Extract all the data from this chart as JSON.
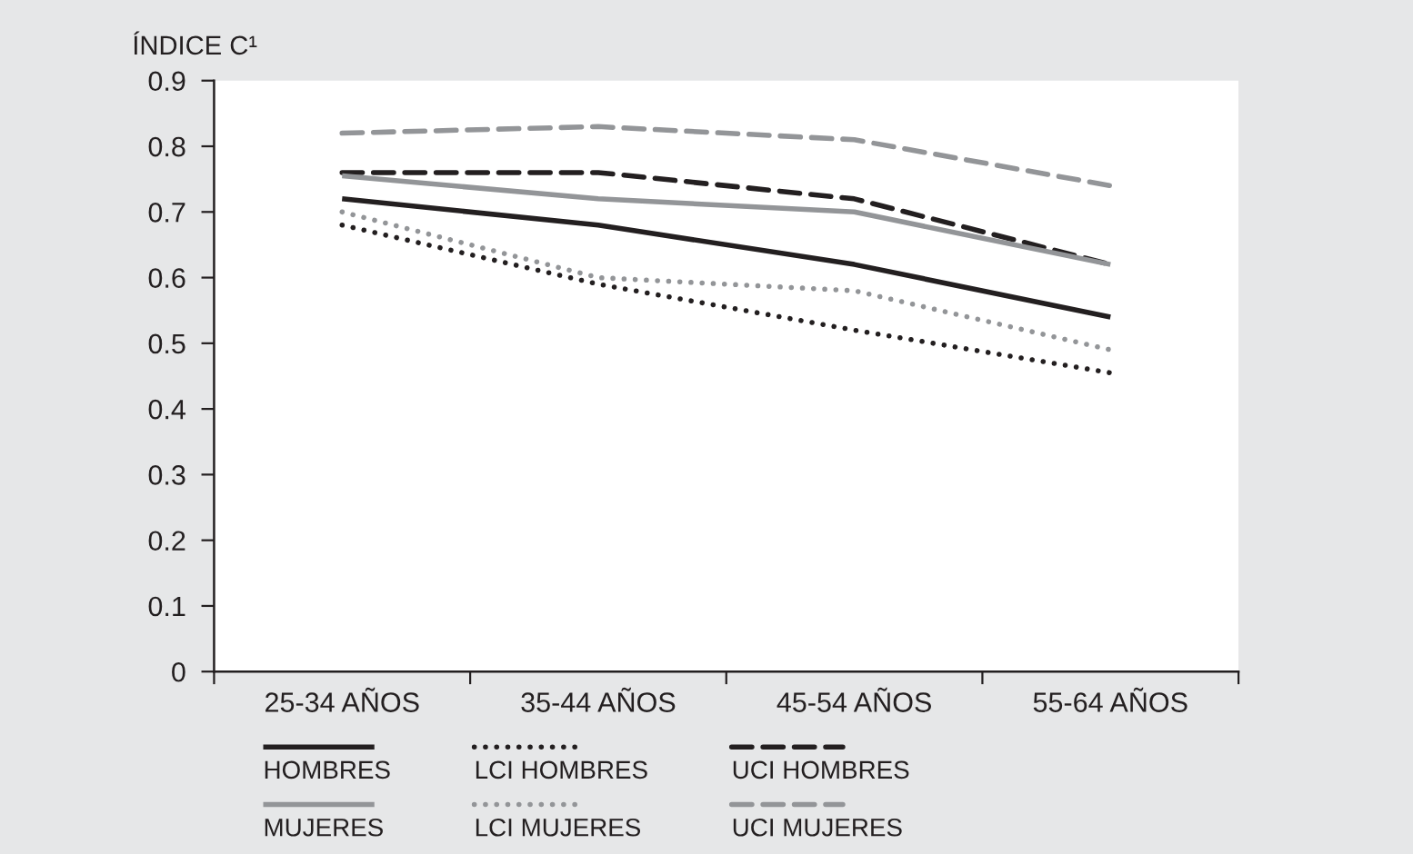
{
  "chart_data": {
    "type": "line",
    "ylabel": "ÍNDICE C¹",
    "categories": [
      "25-34 AÑOS",
      "35-44 AÑOS",
      "45-54 AÑOS",
      "55-64 AÑOS"
    ],
    "ylim": [
      0,
      0.9
    ],
    "yticks": [
      0,
      0.1,
      0.2,
      0.3,
      0.4,
      0.5,
      0.6,
      0.7,
      0.8,
      0.9
    ],
    "legend": "bottom",
    "series": [
      {
        "name": "HOMBRES",
        "color": "#231f20",
        "line_style": "solid",
        "values": [
          0.72,
          0.68,
          0.62,
          0.54
        ]
      },
      {
        "name": "LCI HOMBRES",
        "color": "#231f20",
        "line_style": "dotted",
        "values": [
          0.68,
          0.59,
          0.52,
          0.455
        ]
      },
      {
        "name": "UCI HOMBRES",
        "color": "#231f20",
        "line_style": "dashed",
        "values": [
          0.76,
          0.76,
          0.72,
          0.62
        ]
      },
      {
        "name": "MUJERES",
        "color": "#939598",
        "line_style": "solid",
        "values": [
          0.755,
          0.72,
          0.7,
          0.62
        ]
      },
      {
        "name": "LCI MUJERES",
        "color": "#939598",
        "line_style": "dotted",
        "values": [
          0.7,
          0.6,
          0.58,
          0.49
        ]
      },
      {
        "name": "UCI MUJERES",
        "color": "#939598",
        "line_style": "dashed",
        "values": [
          0.82,
          0.83,
          0.81,
          0.74
        ]
      }
    ]
  }
}
